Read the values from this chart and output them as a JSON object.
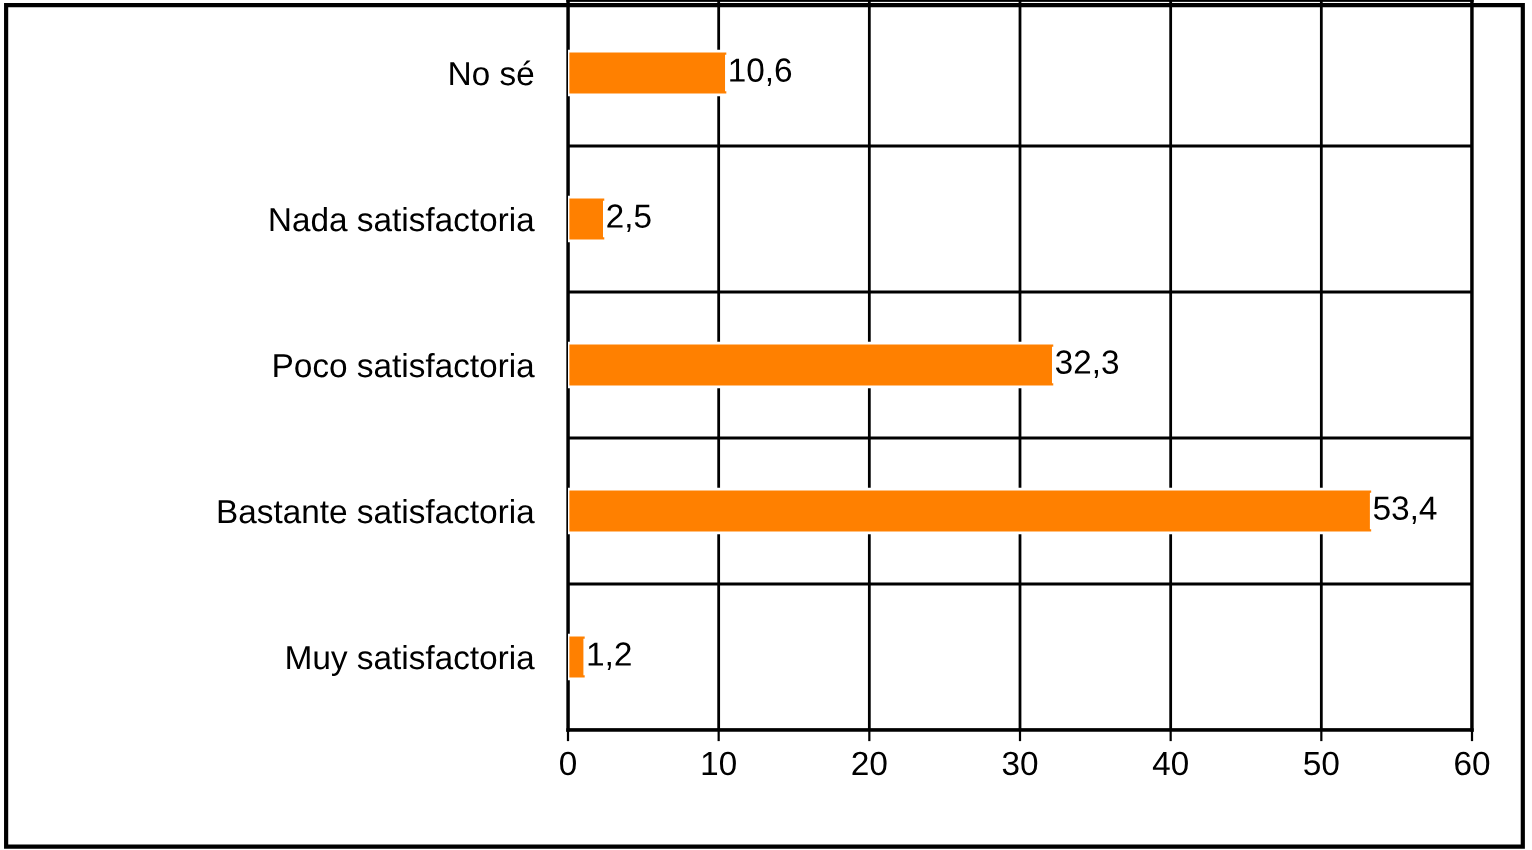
{
  "chart_data": {
    "type": "bar",
    "orientation": "horizontal",
    "categories": [
      "No sé",
      "Nada satisfactoria",
      "Poco satisfactoria",
      "Bastante satisfactoria",
      "Muy satisfactoria"
    ],
    "values": [
      10.6,
      2.5,
      32.3,
      53.4,
      1.2
    ],
    "value_labels": [
      "10,6",
      "2,5",
      "32,3",
      "53,4",
      "1,2"
    ],
    "color": "#ff8000",
    "xlim": [
      0,
      60
    ],
    "xticks": [
      0,
      10,
      20,
      30,
      40,
      50,
      60
    ],
    "grid": true
  }
}
